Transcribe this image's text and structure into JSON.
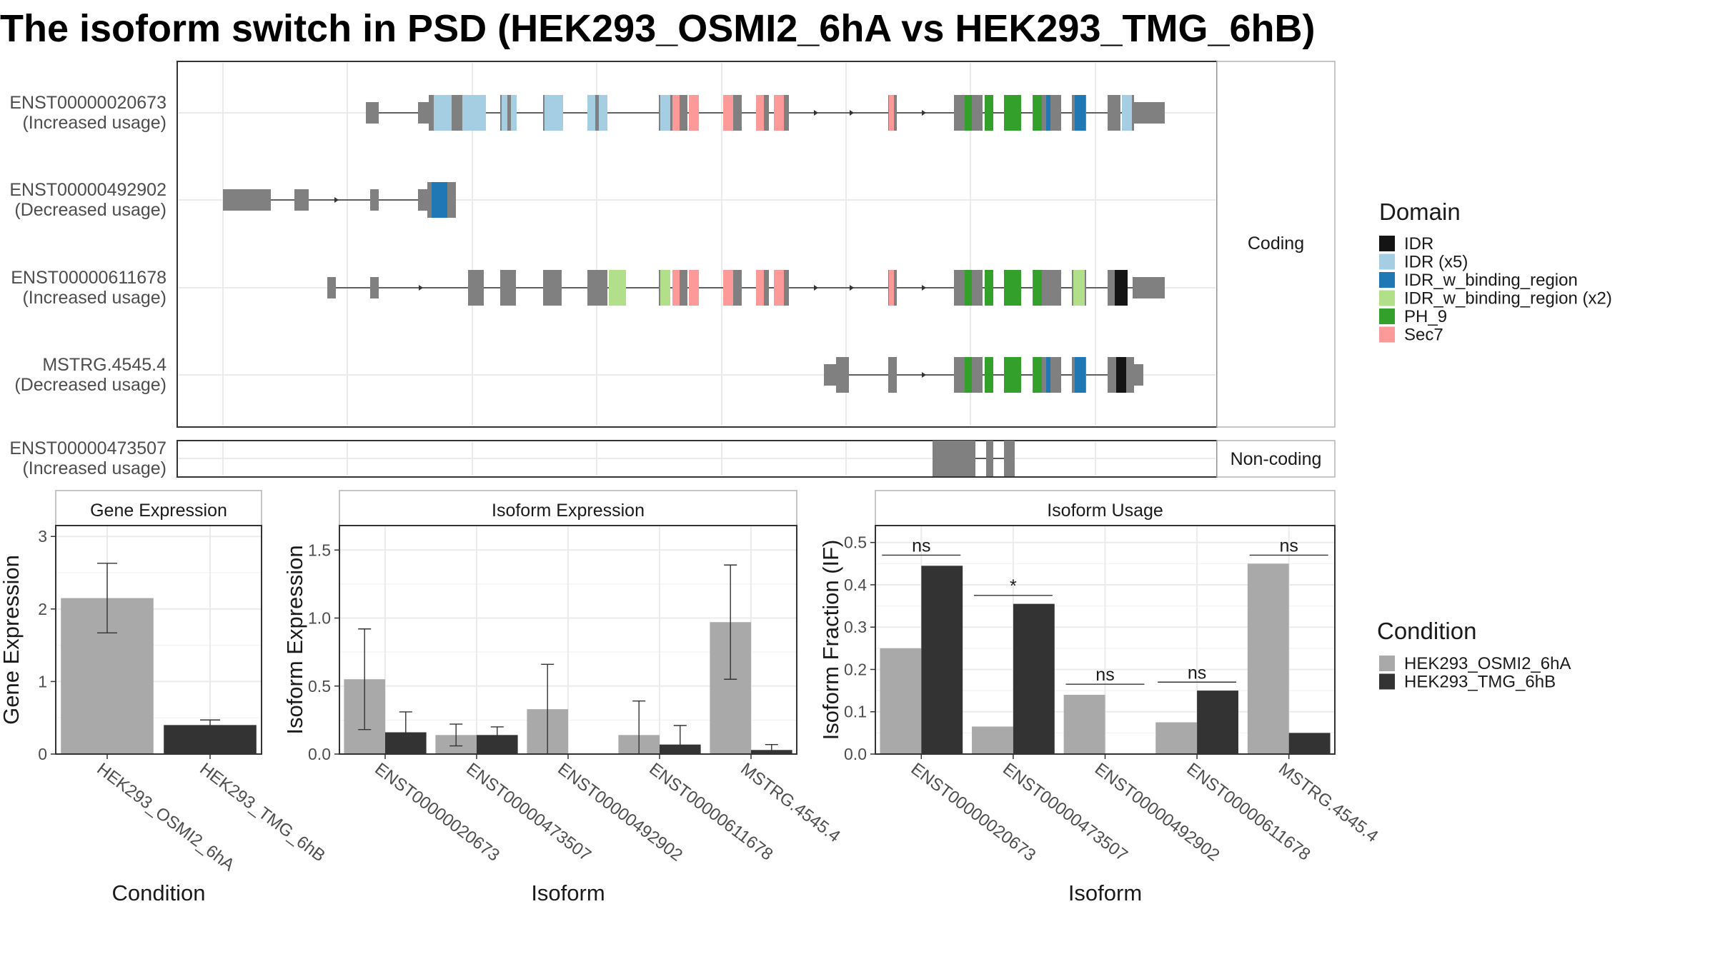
{
  "title": "The isoform switch in PSD (HEK293_OSMI2_6hA vs HEK293_TMG_6hB)",
  "colors": {
    "exon": "#808080",
    "condition_a": "#a9a9a9",
    "condition_b": "#333333",
    "domains": {
      "IDR": "#141414",
      "IDR (x5)": "#a6cee3",
      "IDR_w_binding_region": "#1f78b4",
      "IDR_w_binding_region (x2)": "#b2df8a",
      "PH_9": "#33a02c",
      "Sec7": "#fb9a99"
    }
  },
  "structure": {
    "strip_coding": "Coding",
    "strip_noncoding": "Non-coding",
    "coding": [
      {
        "id": "ENST00000020673",
        "usage": "(Increased usage)"
      },
      {
        "id": "ENST00000492902",
        "usage": "(Decreased usage)"
      },
      {
        "id": "ENST00000611678",
        "usage": "(Increased usage)"
      },
      {
        "id": "MSTRG.4545.4",
        "usage": "(Decreased usage)"
      }
    ],
    "noncoding": [
      {
        "id": "ENST00000473507",
        "usage": "(Increased usage)"
      }
    ]
  },
  "legend_domain": {
    "title": "Domain",
    "entries": [
      "IDR",
      "IDR (x5)",
      "IDR_w_binding_region",
      "IDR_w_binding_region (x2)",
      "PH_9",
      "Sec7"
    ]
  },
  "legend_condition": {
    "title": "Condition",
    "entries": [
      "HEK293_OSMI2_6hA",
      "HEK293_TMG_6hB"
    ]
  },
  "chart_data": [
    {
      "type": "bar",
      "title": "Gene Expression",
      "xlabel": "Condition",
      "ylabel": "Gene Expression",
      "categories": [
        "HEK293_OSMI2_6hA",
        "HEK293_TMG_6hB"
      ],
      "values": [
        2.15,
        0.4
      ],
      "errors": [
        [
          1.67,
          2.63
        ],
        [
          0.33,
          0.47
        ]
      ],
      "ylim": [
        0,
        3.15
      ],
      "yticks": [
        0,
        1,
        2,
        3
      ],
      "grid": true
    },
    {
      "type": "bar",
      "title": "Isoform Expression",
      "xlabel": "Isoform",
      "ylabel": "Isoform Expression",
      "categories": [
        "ENST00000020673",
        "ENST00000473507",
        "ENST00000492902",
        "ENST00000611678",
        "MSTRG.4545.4"
      ],
      "series": [
        {
          "name": "HEK293_OSMI2_6hA",
          "values": [
            0.55,
            0.14,
            0.33,
            0.14,
            0.97
          ],
          "errors": [
            [
              0.18,
              0.92
            ],
            [
              0.06,
              0.22
            ],
            [
              0.0,
              0.66
            ],
            [
              0.0,
              0.39
            ],
            [
              0.55,
              1.39
            ]
          ]
        },
        {
          "name": "HEK293_TMG_6hB",
          "values": [
            0.16,
            0.14,
            0.0,
            0.07,
            0.03
          ],
          "errors": [
            [
              0.0,
              0.31
            ],
            [
              0.09,
              0.2
            ],
            [
              0.0,
              0.0
            ],
            [
              0.0,
              0.21
            ],
            [
              0.0,
              0.07
            ]
          ]
        }
      ],
      "ylim": [
        0,
        1.68
      ],
      "yticks": [
        0.0,
        0.5,
        1.0,
        1.5
      ],
      "grid": true
    },
    {
      "type": "bar",
      "title": "Isoform Usage",
      "xlabel": "Isoform",
      "ylabel": "Isoform Fraction (IF)",
      "categories": [
        "ENST00000020673",
        "ENST00000473507",
        "ENST00000492902",
        "ENST00000611678",
        "MSTRG.4545.4"
      ],
      "series": [
        {
          "name": "HEK293_OSMI2_6hA",
          "values": [
            0.25,
            0.065,
            0.14,
            0.075,
            0.45
          ]
        },
        {
          "name": "HEK293_TMG_6hB",
          "values": [
            0.445,
            0.355,
            0.0,
            0.15,
            0.05
          ]
        }
      ],
      "significance": [
        {
          "label": "ns",
          "y": 0.47
        },
        {
          "label": "*",
          "y": 0.375
        },
        {
          "label": "ns",
          "y": 0.165
        },
        {
          "label": "ns",
          "y": 0.17
        },
        {
          "label": "ns",
          "y": 0.47
        }
      ],
      "ylim": [
        0,
        0.54
      ],
      "yticks": [
        0.0,
        0.1,
        0.2,
        0.3,
        0.4,
        0.5
      ],
      "grid": true
    }
  ]
}
